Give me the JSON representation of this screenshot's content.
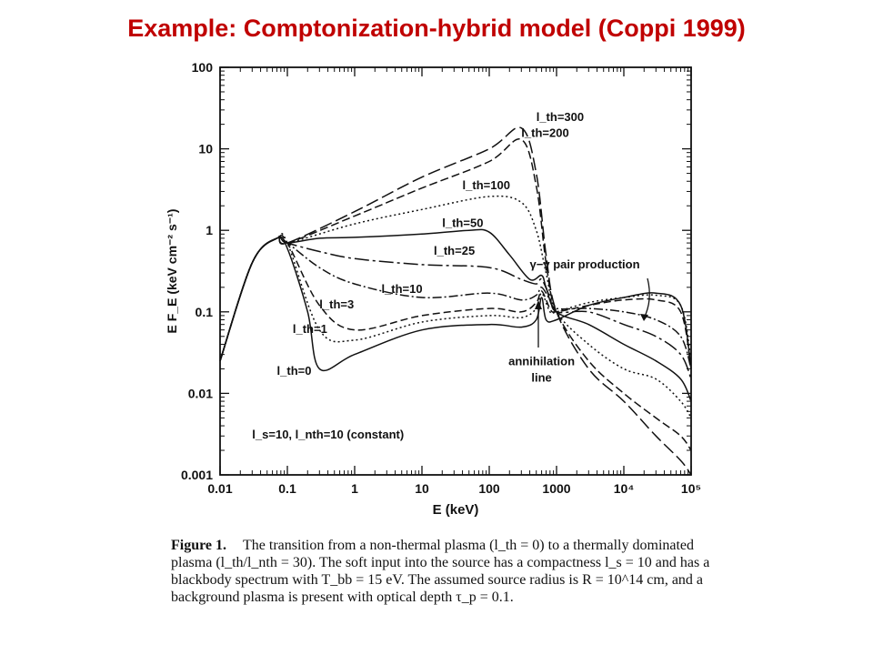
{
  "slide": {
    "title": "Example: Comptonization-hybrid model (Coppi 1999)"
  },
  "caption": {
    "figure_label": "Figure 1.",
    "text": "The transition from a non-thermal plasma (l_th = 0) to a thermally dominated plasma (l_th/l_nth = 30). The soft input into the source has a compactness l_s = 10 and has a blackbody spectrum with T_bb = 15 eV. The assumed source radius is R = 10^14 cm, and a background plasma is present with optical depth τ_p = 0.1."
  },
  "chart_data": {
    "type": "line",
    "xlabel": "E (keV)",
    "ylabel": "E F_E (keV cm⁻² s⁻¹)",
    "xscale": "log",
    "yscale": "log",
    "xlim": [
      0.01,
      100000
    ],
    "ylim": [
      0.001,
      100
    ],
    "x_ticks": [
      "0.01",
      "0.1",
      "1",
      "10",
      "100",
      "1000",
      "10⁴",
      "10⁵"
    ],
    "y_ticks": [
      "0.001",
      "0.01",
      "0.1",
      "1",
      "10",
      "100"
    ],
    "series": [
      {
        "name": "l_th=300",
        "dash": "14,5",
        "x": [
          0.01,
          0.03,
          0.07,
          0.1,
          1,
          10,
          100,
          300,
          500,
          700,
          1000,
          3000,
          10000,
          30000,
          70000,
          100000
        ],
        "y": [
          0.025,
          0.4,
          0.8,
          0.7,
          1.7,
          4.5,
          10,
          18,
          5,
          0.5,
          0.1,
          0.02,
          0.008,
          0.003,
          0.0015,
          0.001
        ]
      },
      {
        "name": "l_th=200",
        "dash": "9,4",
        "x": [
          0.01,
          0.03,
          0.07,
          0.1,
          1,
          10,
          100,
          300,
          500,
          700,
          1000,
          3000,
          10000,
          30000,
          70000,
          100000
        ],
        "y": [
          0.025,
          0.4,
          0.8,
          0.7,
          1.5,
          3.3,
          7,
          13,
          3.5,
          0.4,
          0.1,
          0.025,
          0.01,
          0.005,
          0.003,
          0.002
        ]
      },
      {
        "name": "l_th=100",
        "dash": "2,3",
        "x": [
          0.01,
          0.03,
          0.07,
          0.1,
          1,
          10,
          100,
          300,
          500,
          700,
          1000,
          3000,
          10000,
          30000,
          70000,
          100000
        ],
        "y": [
          0.025,
          0.4,
          0.8,
          0.7,
          1.2,
          1.8,
          2.6,
          2.2,
          1,
          0.3,
          0.1,
          0.04,
          0.02,
          0.015,
          0.008,
          0.005
        ]
      },
      {
        "name": "l_th=50",
        "dash": "",
        "x": [
          0.01,
          0.03,
          0.07,
          0.1,
          0.3,
          1,
          10,
          50,
          100,
          200,
          400,
          600,
          700,
          1000,
          3000,
          10000,
          30000,
          70000,
          100000
        ],
        "y": [
          0.025,
          0.4,
          0.8,
          0.7,
          0.8,
          0.82,
          0.9,
          1.0,
          0.95,
          0.5,
          0.25,
          0.28,
          0.2,
          0.1,
          0.07,
          0.04,
          0.025,
          0.015,
          0.008
        ]
      },
      {
        "name": "l_th=25",
        "dash": "16,4,3,4",
        "x": [
          0.01,
          0.03,
          0.07,
          0.1,
          0.3,
          1,
          10,
          100,
          300,
          500,
          600,
          800,
          1000,
          3000,
          10000,
          30000,
          70000,
          100000
        ],
        "y": [
          0.025,
          0.4,
          0.8,
          0.7,
          0.55,
          0.45,
          0.38,
          0.35,
          0.25,
          0.22,
          0.25,
          0.15,
          0.1,
          0.1,
          0.07,
          0.05,
          0.03,
          0.015
        ]
      },
      {
        "name": "l_th=10",
        "dash": "10,3,2,3",
        "x": [
          0.01,
          0.03,
          0.07,
          0.1,
          0.3,
          1,
          10,
          100,
          300,
          500,
          600,
          800,
          1000,
          3000,
          10000,
          30000,
          70000,
          100000
        ],
        "y": [
          0.025,
          0.4,
          0.8,
          0.7,
          0.35,
          0.22,
          0.15,
          0.17,
          0.14,
          0.16,
          0.2,
          0.14,
          0.11,
          0.11,
          0.1,
          0.08,
          0.05,
          0.02
        ]
      },
      {
        "name": "l_th=3",
        "dash": "8,4",
        "x": [
          0.01,
          0.03,
          0.07,
          0.1,
          0.3,
          1,
          10,
          100,
          300,
          500,
          600,
          800,
          1000,
          3000,
          10000,
          30000,
          70000,
          100000
        ],
        "y": [
          0.025,
          0.4,
          0.8,
          0.7,
          0.12,
          0.06,
          0.09,
          0.11,
          0.1,
          0.13,
          0.18,
          0.11,
          0.1,
          0.12,
          0.14,
          0.14,
          0.1,
          0.02
        ]
      },
      {
        "name": "l_th=1",
        "dash": "2,3",
        "x": [
          0.01,
          0.03,
          0.07,
          0.1,
          0.3,
          1,
          10,
          100,
          300,
          500,
          600,
          800,
          1000,
          3000,
          10000,
          30000,
          70000,
          100000
        ],
        "y": [
          0.025,
          0.4,
          0.8,
          0.7,
          0.06,
          0.045,
          0.075,
          0.09,
          0.085,
          0.11,
          0.17,
          0.1,
          0.1,
          0.13,
          0.15,
          0.16,
          0.12,
          0.025
        ]
      },
      {
        "name": "l_th=0",
        "dash": "",
        "x": [
          0.01,
          0.03,
          0.07,
          0.1,
          0.2,
          0.3,
          1,
          10,
          100,
          300,
          500,
          600,
          700,
          1000,
          3000,
          10000,
          30000,
          70000,
          100000
        ],
        "y": [
          0.025,
          0.4,
          0.8,
          0.6,
          0.1,
          0.02,
          0.03,
          0.06,
          0.07,
          0.065,
          0.08,
          0.15,
          0.08,
          0.08,
          0.12,
          0.15,
          0.17,
          0.12,
          0.02
        ]
      }
    ],
    "series_labels": [
      {
        "text": "l_th=300",
        "x": 500,
        "y": 22
      },
      {
        "text": "l_th=200",
        "x": 300,
        "y": 14
      },
      {
        "text": "l_th=100",
        "x": 40,
        "y": 3.2
      },
      {
        "text": "l_th=50",
        "x": 20,
        "y": 1.1
      },
      {
        "text": "l_th=25",
        "x": 15,
        "y": 0.5
      },
      {
        "text": "l_th=10",
        "x": 2.5,
        "y": 0.17
      },
      {
        "text": "l_th=3",
        "x": 0.3,
        "y": 0.11
      },
      {
        "text": "l_th=1",
        "x": 0.12,
        "y": 0.055
      },
      {
        "text": "l_th=0",
        "x": 0.07,
        "y": 0.017
      }
    ],
    "annotations": [
      {
        "text": "γ−γ pair production",
        "x": 400,
        "y": 0.34
      },
      {
        "text": "annihilation",
        "x": 600,
        "y": 0.022
      },
      {
        "text": "line",
        "x": 600,
        "y": 0.014
      },
      {
        "text": "l_s=10, l_nth=10 (constant)",
        "x": 0.03,
        "y": 0.0028
      }
    ],
    "grid": false
  }
}
